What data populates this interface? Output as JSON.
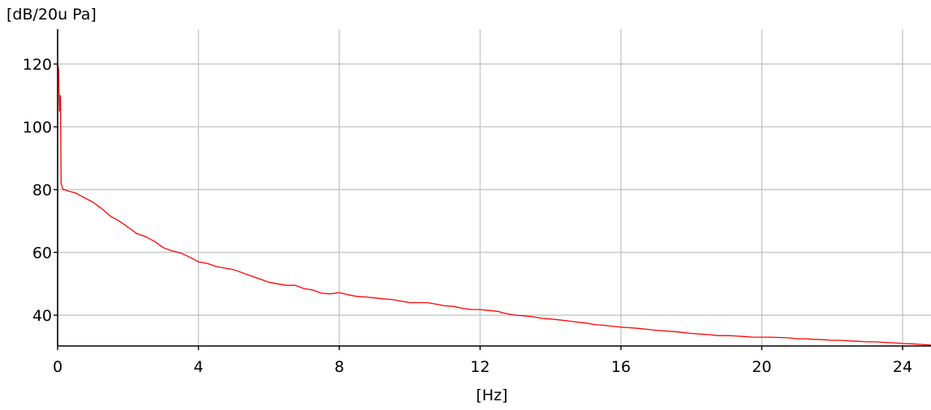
{
  "chart_data": {
    "type": "line",
    "ylabel": "[dB/20u Pa]",
    "xlabel": "[Hz]",
    "xlim": [
      0,
      24.8
    ],
    "ylim": [
      30,
      130
    ],
    "x_ticks": [
      0,
      4,
      8,
      12,
      16,
      20,
      24
    ],
    "y_ticks": [
      40,
      60,
      80,
      100,
      120
    ],
    "grid": true,
    "series_color": "#ff0000",
    "series": [
      {
        "points": [
          [
            0.0,
            120
          ],
          [
            0.03,
            118
          ],
          [
            0.05,
            105
          ],
          [
            0.08,
            110
          ],
          [
            0.1,
            82
          ],
          [
            0.15,
            80
          ],
          [
            0.2,
            80
          ],
          [
            0.3,
            79.5
          ],
          [
            0.5,
            79
          ],
          [
            0.75,
            77.5
          ],
          [
            1.0,
            76
          ],
          [
            1.25,
            74
          ],
          [
            1.5,
            71.5
          ],
          [
            1.75,
            70
          ],
          [
            2.0,
            68
          ],
          [
            2.25,
            66
          ],
          [
            2.5,
            65
          ],
          [
            2.75,
            63.5
          ],
          [
            3.0,
            61.5
          ],
          [
            3.25,
            60.5
          ],
          [
            3.5,
            59.8
          ],
          [
            3.75,
            58.5
          ],
          [
            4.0,
            57
          ],
          [
            4.25,
            56.5
          ],
          [
            4.5,
            55.5
          ],
          [
            4.75,
            55
          ],
          [
            5.0,
            54.5
          ],
          [
            5.25,
            53.5
          ],
          [
            5.5,
            52.5
          ],
          [
            5.75,
            51.5
          ],
          [
            6.0,
            50.5
          ],
          [
            6.25,
            50
          ],
          [
            6.5,
            49.5
          ],
          [
            6.75,
            49.5
          ],
          [
            7.0,
            48.5
          ],
          [
            7.25,
            48
          ],
          [
            7.5,
            47
          ],
          [
            7.75,
            46.8
          ],
          [
            8.0,
            47.2
          ],
          [
            8.25,
            46.5
          ],
          [
            8.5,
            46
          ],
          [
            8.75,
            45.8
          ],
          [
            9.0,
            45.5
          ],
          [
            9.25,
            45.2
          ],
          [
            9.5,
            45
          ],
          [
            9.75,
            44.5
          ],
          [
            10.0,
            44
          ],
          [
            10.25,
            44
          ],
          [
            10.5,
            44
          ],
          [
            10.75,
            43.5
          ],
          [
            11.0,
            43
          ],
          [
            11.25,
            42.8
          ],
          [
            11.5,
            42.2
          ],
          [
            11.75,
            41.8
          ],
          [
            12.0,
            41.8
          ],
          [
            12.25,
            41.5
          ],
          [
            12.5,
            41.2
          ],
          [
            12.75,
            40.5
          ],
          [
            13.0,
            40
          ],
          [
            13.25,
            39.8
          ],
          [
            13.5,
            39.5
          ],
          [
            13.75,
            39
          ],
          [
            14.0,
            38.8
          ],
          [
            14.25,
            38.5
          ],
          [
            14.5,
            38.2
          ],
          [
            14.75,
            37.8
          ],
          [
            15.0,
            37.5
          ],
          [
            15.25,
            37
          ],
          [
            15.5,
            36.8
          ],
          [
            15.75,
            36.5
          ],
          [
            16.0,
            36.2
          ],
          [
            16.25,
            36
          ],
          [
            16.5,
            35.8
          ],
          [
            16.75,
            35.5
          ],
          [
            17.0,
            35.2
          ],
          [
            17.25,
            35
          ],
          [
            17.5,
            34.8
          ],
          [
            17.75,
            34.5
          ],
          [
            18.0,
            34.2
          ],
          [
            18.25,
            34
          ],
          [
            18.5,
            33.8
          ],
          [
            18.75,
            33.5
          ],
          [
            19.0,
            33.5
          ],
          [
            19.25,
            33.4
          ],
          [
            19.5,
            33.2
          ],
          [
            19.75,
            33
          ],
          [
            20.0,
            33
          ],
          [
            20.25,
            33
          ],
          [
            20.5,
            32.9
          ],
          [
            20.75,
            32.8
          ],
          [
            21.0,
            32.5
          ],
          [
            21.25,
            32.5
          ],
          [
            21.5,
            32.3
          ],
          [
            21.75,
            32.2
          ],
          [
            22.0,
            32
          ],
          [
            22.25,
            32
          ],
          [
            22.5,
            31.8
          ],
          [
            22.75,
            31.7
          ],
          [
            23.0,
            31.5
          ],
          [
            23.25,
            31.5
          ],
          [
            23.5,
            31.3
          ],
          [
            23.75,
            31.2
          ],
          [
            24.0,
            31
          ],
          [
            24.25,
            30.9
          ],
          [
            24.5,
            30.7
          ],
          [
            24.8,
            30.5
          ]
        ]
      }
    ]
  }
}
